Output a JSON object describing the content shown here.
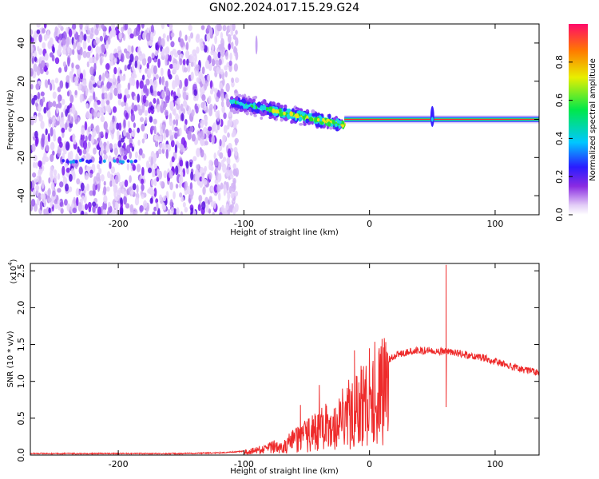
{
  "figure_title": "GN02.2024.017.15.29.G24",
  "colors": {
    "snr_line": "#ee2b2b",
    "carrier_line": "#ff2a2a",
    "noise_purple": "#7a1cf0",
    "signal_cyan": "#19d6e6",
    "signal_green": "#22e03a",
    "signal_yellow": "#e6e61a",
    "axis": "#000000"
  },
  "chart_data": [
    {
      "type": "heatmap",
      "title": "",
      "xlabel": "Height of straight line (km)",
      "ylabel": "Frequency (Hz)",
      "xlim": [
        -270,
        135
      ],
      "ylim": [
        -50,
        50
      ],
      "x_ticks": [
        "-200",
        "-100",
        "0",
        "100"
      ],
      "y_ticks": [
        "40",
        "20",
        "0",
        "-20",
        "-40"
      ],
      "colorbar": {
        "label": "Normalized spectral amplitude",
        "range": [
          0,
          1
        ],
        "ticks": [
          "0.0",
          "0.2",
          "0.4",
          "0.6",
          "0.8"
        ]
      },
      "features": [
        {
          "name": "noise",
          "x_range": [
            -270,
            -105
          ],
          "freq_range": [
            -50,
            50
          ]
        },
        {
          "name": "emerging signal",
          "x_range": [
            -110,
            -20
          ],
          "freq_center_start": 9,
          "freq_center_end": -3
        },
        {
          "name": "carrier",
          "x_range": [
            -20,
            135
          ],
          "freq": 0
        },
        {
          "name": "spike",
          "x": 50,
          "freq_range": [
            -4,
            7
          ]
        },
        {
          "name": "isolated streak",
          "x": -90,
          "freq_range": [
            34,
            44
          ]
        }
      ]
    },
    {
      "type": "line",
      "title": "",
      "xlabel": "Height of straight line (km)",
      "ylabel": "SNR (10 * v/v)",
      "y_scale_label": "(x10",
      "y_scale_exponent": "4",
      "xlim": [
        -270,
        135
      ],
      "ylim": [
        0,
        2.6
      ],
      "x_ticks": [
        "-200",
        "-100",
        "0",
        "100"
      ],
      "y_ticks": [
        "0.0",
        "0.5",
        "1.0",
        "1.5",
        "2.0",
        "2.5"
      ],
      "envelope": {
        "x": [
          -270,
          -200,
          -150,
          -120,
          -100,
          -90,
          -80,
          -70,
          -60,
          -50,
          -40,
          -30,
          -20,
          -10,
          0,
          10,
          20,
          30,
          40,
          50,
          60,
          70,
          80,
          90,
          100,
          110,
          120,
          135
        ],
        "y": [
          0.02,
          0.02,
          0.02,
          0.03,
          0.05,
          0.08,
          0.12,
          0.18,
          0.25,
          0.35,
          0.45,
          0.55,
          0.68,
          0.85,
          1.05,
          1.22,
          1.35,
          1.4,
          1.42,
          1.42,
          1.4,
          1.38,
          1.35,
          1.32,
          1.27,
          1.22,
          1.17,
          1.12
        ]
      },
      "spikes": [
        {
          "x": 61,
          "y": 2.58
        },
        {
          "x": 61,
          "y": 0.65
        },
        {
          "x": -40,
          "y": 0.95
        },
        {
          "x": -12,
          "y": 1.42
        },
        {
          "x": -55,
          "y": 0.68
        }
      ]
    }
  ]
}
